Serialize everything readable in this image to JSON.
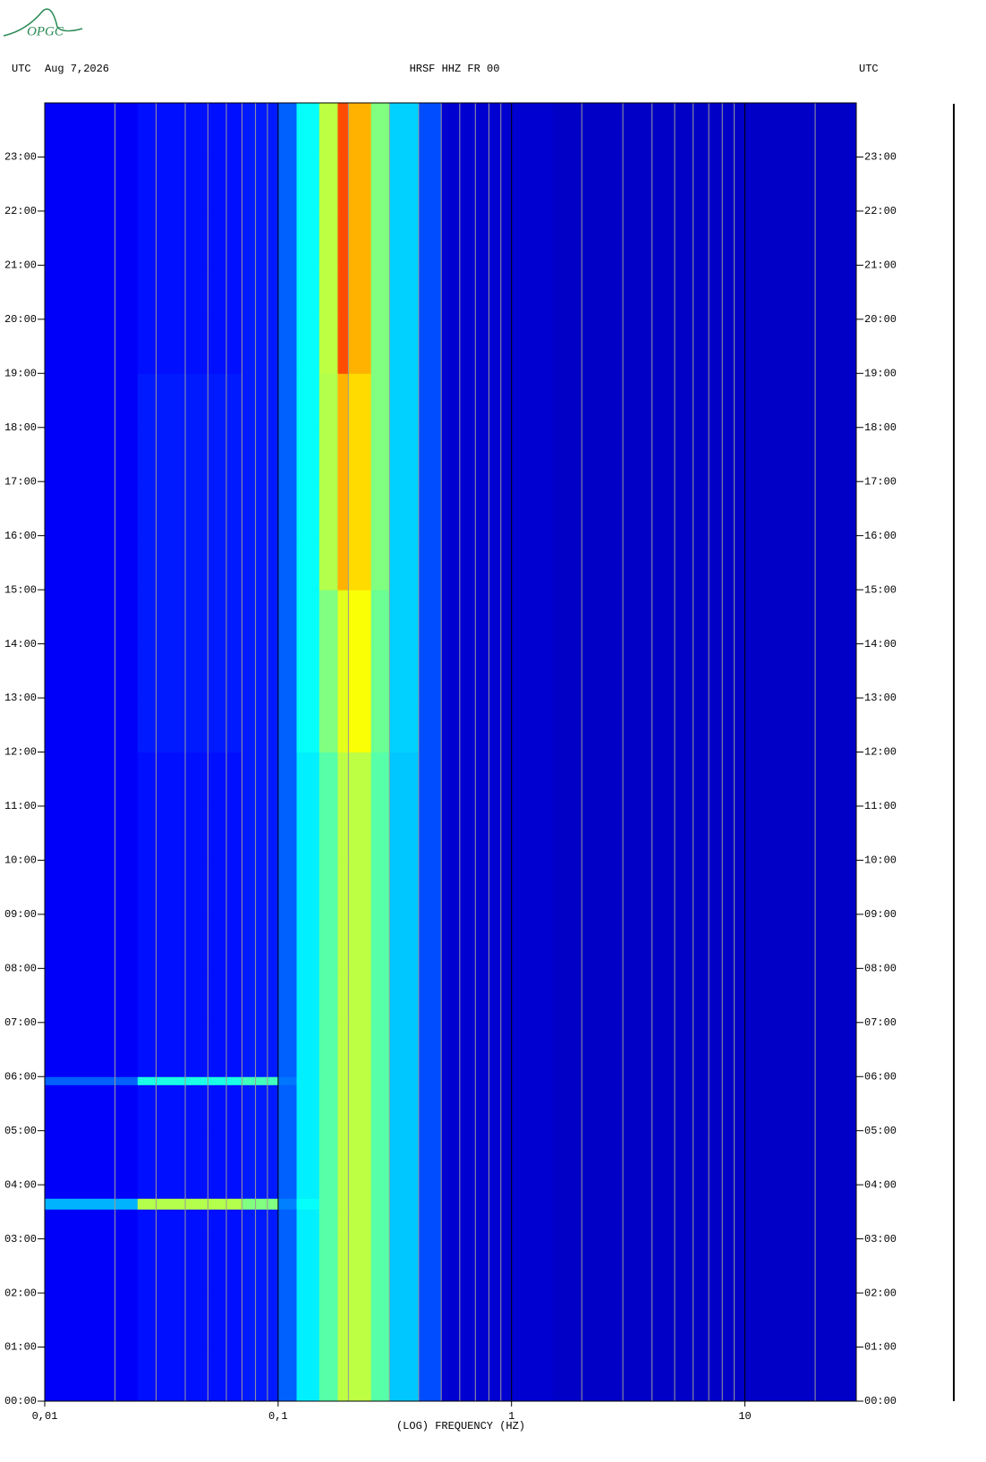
{
  "chart_data": {
    "type": "heatmap",
    "logo": "OPGC",
    "left_header": "UTC",
    "date": "Aug 7,2026",
    "title": "HRSF HHZ FR 00",
    "right_header": "UTC",
    "xlabel": "(LOG) FREQUENCY (HZ)",
    "xscale": "log",
    "xlim": [
      0.01,
      30
    ],
    "xticks": [
      {
        "value": 0.01,
        "label": "0,01"
      },
      {
        "value": 0.1,
        "label": "0,1"
      },
      1,
      10
    ],
    "xgrid_minor": [
      0.02,
      0.03,
      0.04,
      0.05,
      0.06,
      0.07,
      0.08,
      0.09,
      0.2,
      0.3,
      0.4,
      0.5,
      0.6,
      0.7,
      0.8,
      0.9,
      2,
      3,
      4,
      5,
      6,
      7,
      8,
      9,
      20
    ],
    "ylim": [
      0,
      24
    ],
    "yticks": [
      {
        "value": 0,
        "label": "00:00"
      },
      {
        "value": 1,
        "label": "01:00"
      },
      {
        "value": 2,
        "label": "02:00"
      },
      {
        "value": 3,
        "label": "03:00"
      },
      {
        "value": 4,
        "label": "04:00"
      },
      {
        "value": 5,
        "label": "05:00"
      },
      {
        "value": 6,
        "label": "06:00"
      },
      {
        "value": 7,
        "label": "07:00"
      },
      {
        "value": 8,
        "label": "08:00"
      },
      {
        "value": 9,
        "label": "09:00"
      },
      {
        "value": 10,
        "label": "10:00"
      },
      {
        "value": 11,
        "label": "11:00"
      },
      {
        "value": 12,
        "label": "12:00"
      },
      {
        "value": 13,
        "label": "13:00"
      },
      {
        "value": 14,
        "label": "14:00"
      },
      {
        "value": 15,
        "label": "15:00"
      },
      {
        "value": 16,
        "label": "16:00"
      },
      {
        "value": 17,
        "label": "17:00"
      },
      {
        "value": 18,
        "label": "18:00"
      },
      {
        "value": 19,
        "label": "19:00"
      },
      {
        "value": 20,
        "label": "20:00"
      },
      {
        "value": 21,
        "label": "21:00"
      },
      {
        "value": 22,
        "label": "22:00"
      },
      {
        "value": 23,
        "label": "23:00"
      }
    ],
    "x_edges": [
      0.01,
      0.025,
      0.07,
      0.1,
      0.12,
      0.15,
      0.18,
      0.2,
      0.25,
      0.3,
      0.4,
      0.5,
      1.5,
      30
    ],
    "y_edges": [
      0,
      1,
      2,
      3,
      3.55,
      3.75,
      4,
      5,
      5.85,
      6,
      7,
      8,
      9,
      10,
      11,
      12,
      13,
      14,
      15,
      16,
      17,
      18,
      19,
      20,
      21,
      22,
      23,
      24
    ],
    "z": [
      [
        0.12,
        0.14,
        0.15,
        0.22,
        0.36,
        0.46,
        0.56,
        0.56,
        0.46,
        0.32,
        0.2,
        0.08,
        0.07
      ],
      [
        0.12,
        0.14,
        0.15,
        0.22,
        0.36,
        0.46,
        0.56,
        0.56,
        0.46,
        0.32,
        0.2,
        0.08,
        0.07
      ],
      [
        0.12,
        0.14,
        0.15,
        0.22,
        0.36,
        0.46,
        0.56,
        0.56,
        0.46,
        0.32,
        0.2,
        0.08,
        0.07
      ],
      [
        0.12,
        0.14,
        0.15,
        0.22,
        0.36,
        0.46,
        0.56,
        0.56,
        0.46,
        0.32,
        0.2,
        0.08,
        0.07
      ],
      [
        0.3,
        0.55,
        0.5,
        0.25,
        0.38,
        0.46,
        0.56,
        0.56,
        0.46,
        0.32,
        0.2,
        0.08,
        0.07
      ],
      [
        0.12,
        0.14,
        0.15,
        0.22,
        0.36,
        0.46,
        0.56,
        0.56,
        0.46,
        0.32,
        0.2,
        0.08,
        0.07
      ],
      [
        0.12,
        0.14,
        0.15,
        0.22,
        0.36,
        0.46,
        0.56,
        0.56,
        0.46,
        0.32,
        0.2,
        0.08,
        0.07
      ],
      [
        0.12,
        0.14,
        0.15,
        0.22,
        0.36,
        0.46,
        0.56,
        0.56,
        0.46,
        0.32,
        0.2,
        0.08,
        0.07
      ],
      [
        0.22,
        0.4,
        0.44,
        0.24,
        0.36,
        0.46,
        0.56,
        0.56,
        0.46,
        0.32,
        0.2,
        0.08,
        0.07
      ],
      [
        0.12,
        0.14,
        0.15,
        0.22,
        0.36,
        0.46,
        0.56,
        0.56,
        0.46,
        0.32,
        0.2,
        0.08,
        0.07
      ],
      [
        0.12,
        0.14,
        0.15,
        0.22,
        0.36,
        0.46,
        0.56,
        0.56,
        0.46,
        0.32,
        0.2,
        0.08,
        0.07
      ],
      [
        0.12,
        0.14,
        0.15,
        0.22,
        0.36,
        0.46,
        0.56,
        0.56,
        0.46,
        0.32,
        0.2,
        0.08,
        0.07
      ],
      [
        0.12,
        0.14,
        0.15,
        0.22,
        0.36,
        0.46,
        0.56,
        0.56,
        0.46,
        0.32,
        0.2,
        0.08,
        0.07
      ],
      [
        0.12,
        0.14,
        0.15,
        0.22,
        0.36,
        0.46,
        0.56,
        0.56,
        0.46,
        0.32,
        0.2,
        0.08,
        0.07
      ],
      [
        0.12,
        0.14,
        0.15,
        0.22,
        0.36,
        0.46,
        0.56,
        0.56,
        0.46,
        0.32,
        0.2,
        0.08,
        0.07
      ],
      [
        0.12,
        0.15,
        0.15,
        0.22,
        0.38,
        0.5,
        0.6,
        0.62,
        0.48,
        0.33,
        0.2,
        0.08,
        0.07
      ],
      [
        0.12,
        0.15,
        0.15,
        0.22,
        0.38,
        0.5,
        0.6,
        0.62,
        0.48,
        0.33,
        0.2,
        0.08,
        0.07
      ],
      [
        0.12,
        0.15,
        0.15,
        0.22,
        0.38,
        0.5,
        0.6,
        0.62,
        0.48,
        0.33,
        0.2,
        0.08,
        0.07
      ],
      [
        0.12,
        0.15,
        0.15,
        0.22,
        0.38,
        0.55,
        0.7,
        0.66,
        0.5,
        0.33,
        0.2,
        0.08,
        0.07
      ],
      [
        0.12,
        0.15,
        0.15,
        0.22,
        0.38,
        0.55,
        0.7,
        0.66,
        0.5,
        0.33,
        0.2,
        0.08,
        0.07
      ],
      [
        0.12,
        0.15,
        0.15,
        0.22,
        0.38,
        0.55,
        0.7,
        0.66,
        0.5,
        0.33,
        0.2,
        0.08,
        0.07
      ],
      [
        0.12,
        0.15,
        0.15,
        0.22,
        0.38,
        0.55,
        0.7,
        0.66,
        0.5,
        0.33,
        0.2,
        0.08,
        0.07
      ],
      [
        0.12,
        0.14,
        0.15,
        0.22,
        0.38,
        0.56,
        0.8,
        0.7,
        0.5,
        0.33,
        0.2,
        0.08,
        0.07
      ],
      [
        0.12,
        0.14,
        0.15,
        0.22,
        0.38,
        0.56,
        0.8,
        0.7,
        0.5,
        0.33,
        0.2,
        0.08,
        0.07
      ],
      [
        0.12,
        0.14,
        0.15,
        0.22,
        0.38,
        0.56,
        0.8,
        0.7,
        0.5,
        0.33,
        0.2,
        0.08,
        0.07
      ],
      [
        0.12,
        0.14,
        0.15,
        0.22,
        0.38,
        0.56,
        0.8,
        0.7,
        0.5,
        0.33,
        0.2,
        0.08,
        0.07
      ],
      [
        0.12,
        0.14,
        0.15,
        0.22,
        0.38,
        0.56,
        0.8,
        0.7,
        0.5,
        0.33,
        0.2,
        0.08,
        0.07
      ]
    ]
  }
}
